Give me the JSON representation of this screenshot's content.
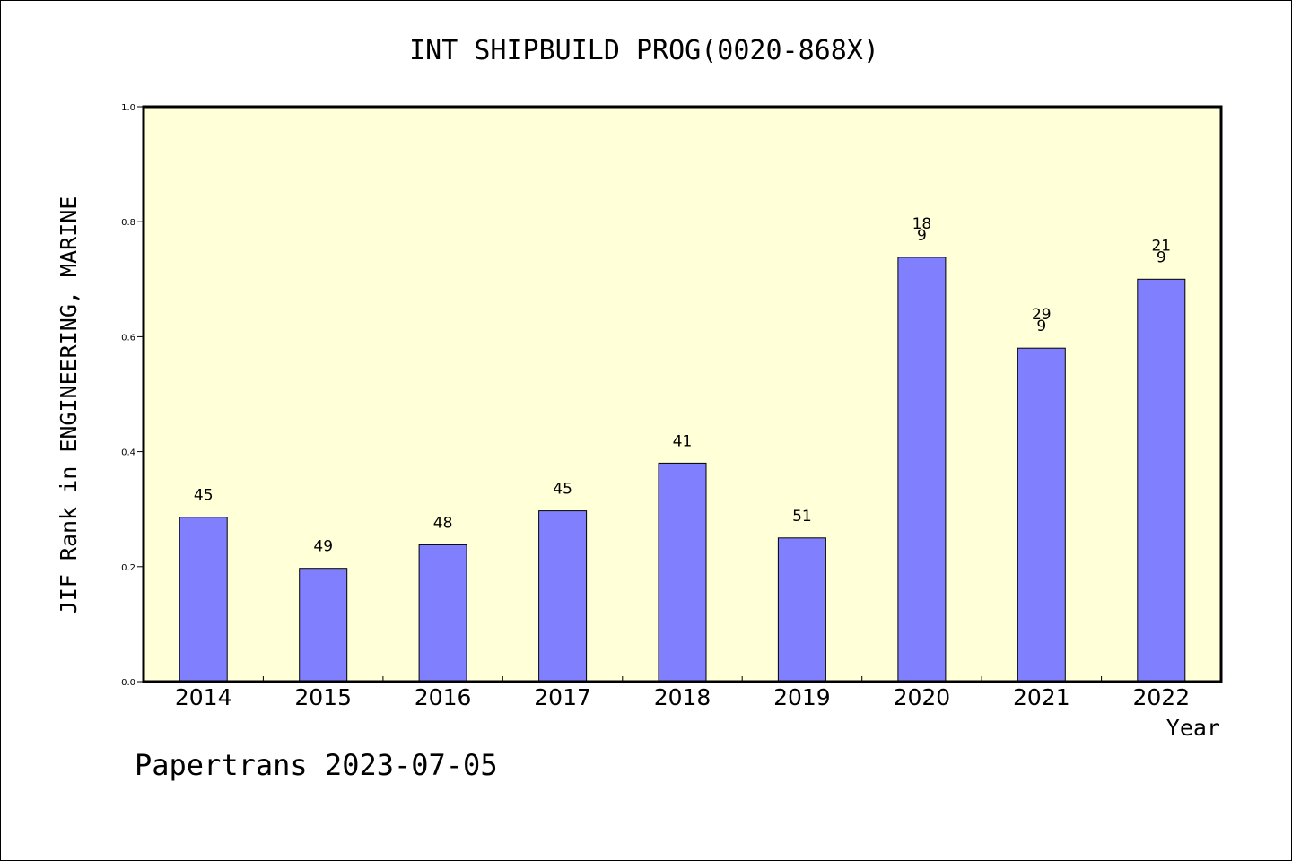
{
  "chart_data": {
    "type": "bar",
    "title": "INT SHIPBUILD PROG(0020-868X)",
    "xlabel": "Year",
    "ylabel": "JIF Rank in ENGINEERING, MARINE",
    "ylim": [
      0,
      1.0
    ],
    "yticks": [
      "0.0",
      "0.2",
      "0.4",
      "0.6",
      "0.8",
      "1.0"
    ],
    "categories": [
      "2014",
      "2015",
      "2016",
      "2017",
      "2018",
      "2019",
      "2020",
      "2021",
      "2022"
    ],
    "values": [
      0.286,
      0.197,
      0.238,
      0.297,
      0.38,
      0.25,
      0.738,
      0.58,
      0.7
    ],
    "data_labels": [
      "45",
      "49",
      "48",
      "45",
      "41",
      "51",
      "18\n9",
      "29\n9",
      "21\n9"
    ],
    "grid": false,
    "colors": {
      "plot_background": "#ffffd8",
      "bar_fill": "#8080ff",
      "bar_stroke": "#000000"
    }
  },
  "footer": {
    "text": "Papertrans 2023-07-05"
  }
}
